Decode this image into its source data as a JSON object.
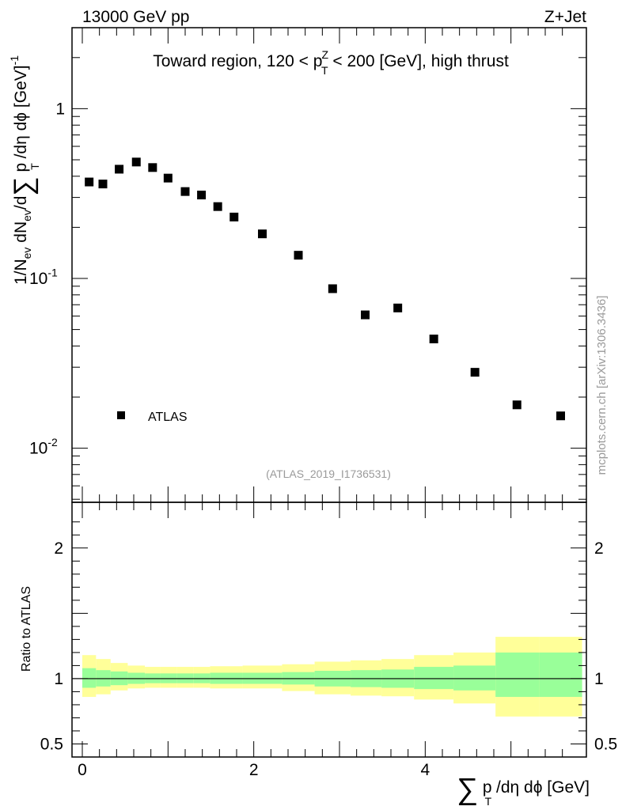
{
  "header": {
    "energy_label": "13000 GeV pp",
    "process_label": "Z+Jet"
  },
  "side_label": "mcplots.cern.ch [arXiv:1306.3436]",
  "chart_data": [
    {
      "type": "scatter",
      "panel": "main",
      "title": "Toward region, 120 < p_T^Z < 200 [GeV], high thrust",
      "title_parts": {
        "prefix": "Toward region, 120 < p",
        "sup": "Z",
        "sub": "T",
        "suffix": " < 200 [GeV], high thrust"
      },
      "ylabel_parts": {
        "a": "1/N",
        "a_sub": "ev",
        "b": " dN",
        "b_sub": "ev",
        "c": "/d",
        "sum": "∑",
        "d": " p",
        "d_sub": "T",
        "e": " /dη dϕ  [GeV]",
        "e_sup": "-1"
      },
      "yscale": "log",
      "ylim": [
        0.0048,
        3.0
      ],
      "xlim": [
        -0.12,
        5.88
      ],
      "y_ticks": [
        {
          "value": 1,
          "label": "1"
        },
        {
          "value": 0.1,
          "label": "10",
          "sup": "-1"
        },
        {
          "value": 0.01,
          "label": "10",
          "sup": "-2"
        }
      ],
      "series": [
        {
          "name": "ATLAS",
          "x": [
            0.08,
            0.24,
            0.43,
            0.63,
            0.82,
            1.0,
            1.2,
            1.39,
            1.58,
            1.77,
            2.1,
            2.52,
            2.92,
            3.3,
            3.68,
            4.1,
            4.58,
            5.07,
            5.58
          ],
          "values": [
            0.37,
            0.36,
            0.44,
            0.485,
            0.45,
            0.39,
            0.325,
            0.31,
            0.265,
            0.23,
            0.183,
            0.137,
            0.087,
            0.061,
            0.067,
            0.044,
            0.028,
            0.018,
            0.0155
          ]
        }
      ],
      "legend": {
        "entries": [
          "ATLAS"
        ],
        "placement": "bottom-left"
      },
      "annotation": "(ATLAS_2019_I1736531)"
    },
    {
      "type": "area",
      "panel": "ratio",
      "ylabel": "Ratio to ATLAS",
      "ylim": [
        0.4,
        2.35
      ],
      "xlim": [
        -0.12,
        5.88
      ],
      "xlabel_parts": {
        "sum": "∑",
        "a": " p",
        "a_sub": "T",
        "b": " /dη dϕ [GeV]"
      },
      "x_ticks": [
        {
          "value": 0,
          "label": "0"
        },
        {
          "value": 2,
          "label": "2"
        },
        {
          "value": 4,
          "label": "4"
        }
      ],
      "y_ticks": [
        {
          "value": 2,
          "label": "2"
        },
        {
          "value": 1,
          "label": "1"
        },
        {
          "value": 0.5,
          "label": "0.5"
        }
      ],
      "reference_line": 1,
      "bands": {
        "bin_edges": [
          0.0,
          0.16,
          0.33,
          0.53,
          0.73,
          0.91,
          1.1,
          1.3,
          1.49,
          1.68,
          1.87,
          2.33,
          2.71,
          3.13,
          3.49,
          3.87,
          4.33,
          4.82,
          5.33,
          5.83
        ],
        "inner_low": [
          0.93,
          0.94,
          0.95,
          0.96,
          0.965,
          0.965,
          0.965,
          0.965,
          0.96,
          0.96,
          0.96,
          0.955,
          0.94,
          0.935,
          0.93,
          0.92,
          0.91,
          0.86,
          0.86
        ],
        "inner_high": [
          1.08,
          1.065,
          1.055,
          1.045,
          1.04,
          1.04,
          1.04,
          1.04,
          1.045,
          1.045,
          1.045,
          1.05,
          1.06,
          1.065,
          1.07,
          1.09,
          1.1,
          1.2,
          1.2
        ],
        "outer_low": [
          0.86,
          0.88,
          0.91,
          0.925,
          0.93,
          0.93,
          0.93,
          0.93,
          0.925,
          0.925,
          0.925,
          0.905,
          0.88,
          0.87,
          0.865,
          0.84,
          0.81,
          0.71,
          0.71
        ],
        "outer_high": [
          1.18,
          1.15,
          1.12,
          1.1,
          1.09,
          1.09,
          1.09,
          1.09,
          1.095,
          1.095,
          1.1,
          1.11,
          1.13,
          1.14,
          1.15,
          1.18,
          1.2,
          1.32,
          1.32
        ],
        "inner_color": "#99ff99",
        "outer_color": "#ffff99"
      }
    }
  ]
}
